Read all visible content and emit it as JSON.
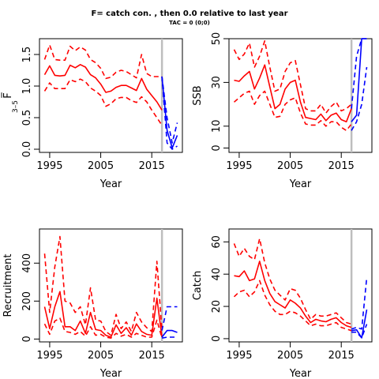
{
  "title": "F= catch con. , then 0.0  relative to last year",
  "subtitle": "TAC = 0 (0;0)",
  "colors": {
    "hist": "#ff0000",
    "proj": "#0000ff",
    "vline": "#bebebe",
    "frame": "#000000"
  },
  "chart_data": [
    {
      "type": "line",
      "id": "fbar",
      "xlabel": "Year",
      "ylabel": "F̅",
      "ylabel_sub": "3–5",
      "xlim": [
        1993,
        2021
      ],
      "ylim": [
        -0.05,
        1.75
      ],
      "xticks": [
        1995,
        2005,
        2015
      ],
      "yticks": [
        0.0,
        0.5,
        1.0,
        1.5
      ],
      "ytick_labels": [
        "0.0",
        "0.5",
        "1.0",
        "1.5"
      ],
      "vline_year": 2017,
      "hist_x": [
        1994,
        1995,
        1996,
        1997,
        1998,
        1999,
        2000,
        2001,
        2002,
        2003,
        2004,
        2005,
        2006,
        2007,
        2008,
        2009,
        2010,
        2011,
        2012,
        2013,
        2014,
        2015,
        2016,
        2017
      ],
      "hist_median": [
        1.18,
        1.32,
        1.17,
        1.16,
        1.17,
        1.33,
        1.29,
        1.34,
        1.3,
        1.18,
        1.13,
        1.03,
        0.9,
        0.92,
        0.98,
        1.01,
        1.01,
        0.97,
        0.93,
        1.12,
        0.95,
        0.85,
        0.75,
        0.62
      ],
      "hist_upper": [
        1.42,
        1.65,
        1.42,
        1.41,
        1.41,
        1.63,
        1.56,
        1.62,
        1.57,
        1.42,
        1.37,
        1.28,
        1.12,
        1.14,
        1.22,
        1.25,
        1.23,
        1.18,
        1.13,
        1.5,
        1.2,
        1.15,
        1.15,
        1.15
      ],
      "hist_lower": [
        0.92,
        1.05,
        0.96,
        0.96,
        0.96,
        1.1,
        1.07,
        1.11,
        1.07,
        0.97,
        0.92,
        0.85,
        0.68,
        0.72,
        0.8,
        0.82,
        0.82,
        0.77,
        0.74,
        0.83,
        0.75,
        0.62,
        0.5,
        0.38
      ],
      "proj_x": [
        2017,
        2018,
        2019,
        2020
      ],
      "proj_median": [
        1.15,
        0.3,
        0.02,
        0.22
      ],
      "proj_upper": [
        1.15,
        0.5,
        0.1,
        0.42
      ],
      "proj_lower": [
        1.15,
        0.1,
        0.0,
        0.05
      ]
    },
    {
      "type": "line",
      "id": "ssb",
      "xlabel": "Year",
      "ylabel": "SSB",
      "xlim": [
        1993,
        2021
      ],
      "ylim": [
        -2,
        50
      ],
      "xticks": [
        1995,
        2005,
        2015
      ],
      "yticks": [
        0,
        10,
        30,
        50
      ],
      "ytick_labels": [
        "0",
        "10",
        "30",
        "50"
      ],
      "vline_year": 2017,
      "hist_x": [
        1994,
        1995,
        1996,
        1997,
        1998,
        1999,
        2000,
        2001,
        2002,
        2003,
        2004,
        2005,
        2006,
        2007,
        2008,
        2009,
        2010,
        2011,
        2012,
        2013,
        2014,
        2015,
        2016,
        2017
      ],
      "hist_median": [
        31,
        30.5,
        33,
        35,
        27,
        32,
        38,
        28,
        18,
        20,
        27,
        30,
        31,
        21,
        14,
        13.5,
        13,
        15.5,
        12.5,
        15,
        16,
        13,
        12,
        18
      ],
      "hist_upper": [
        45,
        40.5,
        43,
        48,
        37,
        42,
        49,
        37,
        26,
        27,
        35,
        39,
        40,
        29,
        18,
        17,
        17,
        20,
        16,
        19,
        21,
        17,
        18,
        20
      ],
      "hist_lower": [
        21,
        23,
        25,
        26,
        20,
        24,
        26,
        20,
        14,
        14.5,
        20,
        22,
        23,
        16,
        11,
        10.5,
        10.5,
        12.5,
        10,
        12,
        12,
        9.5,
        8,
        11
      ],
      "proj_x": [
        2017,
        2018,
        2019,
        2020
      ],
      "proj_median": [
        12,
        15,
        50,
        51
      ],
      "proj_upper": [
        18,
        42,
        51,
        51
      ],
      "proj_lower": [
        8,
        12,
        20,
        37
      ]
    },
    {
      "type": "line",
      "id": "recruitment",
      "xlabel": "Year",
      "ylabel": "Recruitment",
      "xlim": [
        1993,
        2021
      ],
      "ylim": [
        -15,
        580
      ],
      "xticks": [
        1995,
        2005,
        2015
      ],
      "yticks": [
        0,
        200,
        400
      ],
      "ytick_labels": [
        "0",
        "200",
        "400"
      ],
      "vline_year": 2017,
      "hist_x": [
        1994,
        1995,
        1996,
        1997,
        1998,
        1999,
        2000,
        2001,
        2002,
        2003,
        2004,
        2005,
        2006,
        2007,
        2008,
        2009,
        2010,
        2011,
        2012,
        2013,
        2014,
        2015,
        2016,
        2017
      ],
      "hist_median": [
        170,
        55,
        170,
        250,
        65,
        65,
        45,
        95,
        30,
        140,
        50,
        45,
        20,
        10,
        75,
        30,
        60,
        20,
        80,
        40,
        25,
        20,
        215,
        10
      ],
      "hist_upper": [
        450,
        140,
        380,
        540,
        200,
        190,
        140,
        170,
        75,
        270,
        100,
        95,
        40,
        20,
        130,
        55,
        90,
        40,
        140,
        90,
        60,
        40,
        410,
        45
      ],
      "hist_lower": [
        80,
        25,
        95,
        110,
        40,
        35,
        25,
        40,
        15,
        65,
        20,
        25,
        10,
        5,
        30,
        15,
        25,
        10,
        30,
        20,
        10,
        10,
        100,
        5
      ],
      "proj_x": [
        2017,
        2018,
        2019,
        2020
      ],
      "proj_median": [
        10,
        45,
        45,
        35
      ],
      "proj_upper": [
        45,
        170,
        170,
        170
      ],
      "proj_lower": [
        5,
        10,
        10,
        10
      ]
    },
    {
      "type": "line",
      "id": "catch",
      "xlabel": "Year",
      "ylabel": "Catch",
      "xlim": [
        1993,
        2021
      ],
      "ylim": [
        -2,
        68
      ],
      "xticks": [
        1995,
        2005,
        2015
      ],
      "yticks": [
        0,
        20,
        40,
        60
      ],
      "ytick_labels": [
        "0",
        "20",
        "40",
        "60"
      ],
      "vline_year": 2017,
      "hist_x": [
        1994,
        1995,
        1996,
        1997,
        1998,
        1999,
        2000,
        2001,
        2002,
        2003,
        2004,
        2005,
        2006,
        2007,
        2008,
        2009,
        2010,
        2011,
        2012,
        2013,
        2014,
        2015,
        2016,
        2017
      ],
      "hist_median": [
        39,
        38.5,
        42,
        36,
        37,
        48,
        36,
        28,
        23,
        21,
        19,
        24,
        22,
        19,
        14,
        10,
        12,
        11,
        10.5,
        12,
        13,
        10,
        8,
        7
      ],
      "hist_upper": [
        59,
        51,
        56,
        51,
        49,
        62,
        47,
        37,
        30,
        27,
        24,
        31,
        30,
        25,
        18,
        12,
        15,
        14,
        14,
        15,
        16,
        13,
        10,
        9
      ],
      "hist_lower": [
        26,
        29,
        30,
        26,
        29,
        36,
        27,
        21,
        17,
        15,
        15,
        17,
        16,
        14,
        11,
        8,
        9,
        8,
        8,
        9,
        10,
        7,
        6,
        5
      ],
      "proj_x": [
        2017,
        2018,
        2019,
        2020
      ],
      "proj_median": [
        5,
        5.5,
        0.5,
        18
      ],
      "proj_upper": [
        6,
        7,
        6,
        38
      ],
      "proj_lower": [
        4,
        4,
        0.5,
        9
      ]
    }
  ]
}
